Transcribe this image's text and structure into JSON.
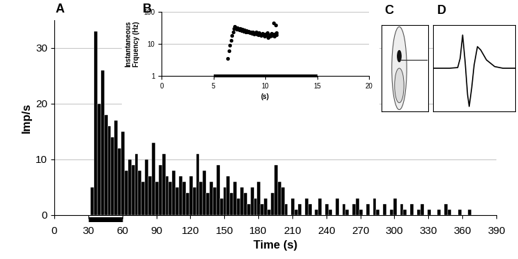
{
  "chart_data": [
    {
      "type": "histogram",
      "title": "A",
      "y_label": "Imp/s",
      "x_label": "Time (s)",
      "bins": [
        32,
        35,
        38,
        41,
        44,
        47,
        50,
        53,
        56,
        59,
        62,
        65,
        68,
        71,
        74,
        77,
        80,
        83,
        86,
        89,
        92,
        95,
        98,
        101,
        104,
        107,
        110,
        113,
        116,
        119,
        122,
        125,
        128,
        131,
        134,
        137,
        140,
        143,
        146,
        149,
        152,
        155,
        158,
        161,
        164,
        167,
        170,
        173,
        176,
        179,
        182,
        185,
        188,
        191,
        194,
        197,
        200,
        203,
        206,
        209,
        212,
        215,
        218,
        221,
        224,
        227,
        230,
        233,
        236,
        239,
        242,
        245,
        248,
        251,
        254,
        257,
        260,
        263,
        266,
        269,
        272,
        275,
        278,
        281,
        284,
        287,
        290,
        293,
        296,
        299,
        302,
        305,
        308,
        311,
        314,
        317,
        320,
        323,
        326,
        329,
        332,
        335,
        338,
        341,
        344,
        347,
        350,
        353,
        356,
        359,
        362,
        365,
        368,
        371
      ],
      "values": [
        5,
        33,
        20,
        26,
        18,
        16,
        14,
        17,
        12,
        15,
        8,
        10,
        9,
        11,
        8,
        6,
        10,
        7,
        13,
        6,
        9,
        11,
        7,
        6,
        8,
        5,
        7,
        6,
        4,
        7,
        5,
        11,
        6,
        8,
        4,
        6,
        5,
        9,
        3,
        5,
        7,
        4,
        6,
        3,
        5,
        4,
        2,
        5,
        3,
        6,
        2,
        3,
        1,
        4,
        9,
        6,
        5,
        2,
        0,
        3,
        1,
        2,
        0,
        3,
        2,
        0,
        1,
        3,
        0,
        2,
        1,
        0,
        3,
        0,
        2,
        1,
        0,
        2,
        3,
        1,
        0,
        2,
        0,
        3,
        1,
        0,
        2,
        0,
        1,
        3,
        0,
        2,
        1,
        0,
        2,
        0,
        1,
        2,
        0,
        1,
        0,
        0,
        1,
        0,
        2,
        1,
        0,
        0,
        1,
        0,
        0,
        1,
        0
      ],
      "color": "#000000",
      "xlim": [
        0,
        390
      ],
      "xticks": [
        0,
        30,
        60,
        90,
        120,
        150,
        180,
        210,
        240,
        270,
        300,
        330,
        360,
        390
      ],
      "ylim": [
        0,
        35
      ],
      "yticks": [
        0,
        10,
        20,
        30
      ],
      "grid": true,
      "stimulus": [
        30,
        60
      ]
    },
    {
      "type": "scatter",
      "title": "B",
      "y_label": "Instantaneous\nFrquency (Hz)",
      "x_label": "(s)",
      "x": [
        6.4,
        6.5,
        6.6,
        6.7,
        6.8,
        6.9,
        7.0,
        7.05,
        7.1,
        7.2,
        7.25,
        7.3,
        7.4,
        7.5,
        7.6,
        7.7,
        7.8,
        7.9,
        8.0,
        8.1,
        8.2,
        8.3,
        8.4,
        8.5,
        8.6,
        8.7,
        8.8,
        8.9,
        9.0,
        9.1,
        9.2,
        9.3,
        9.4,
        9.5,
        9.6,
        9.7,
        9.8,
        9.9,
        10.0,
        10.1,
        10.2,
        10.3,
        10.4,
        10.5,
        10.6,
        10.7,
        10.8,
        10.85,
        10.9,
        11.0,
        11.05,
        11.1
      ],
      "values": [
        3.5,
        6,
        9,
        13,
        18,
        24,
        30,
        35,
        33,
        30,
        28,
        32,
        29,
        27,
        30,
        26,
        28,
        25,
        27,
        24,
        26,
        23,
        25,
        22,
        24,
        21,
        23,
        20,
        22,
        24,
        20,
        19,
        22,
        20,
        18,
        21,
        19,
        17,
        20,
        18,
        22,
        16,
        19,
        17,
        21,
        18,
        45,
        20,
        17,
        38,
        19,
        22
      ],
      "color": "#000000",
      "marker": "o",
      "log": "y",
      "xlim": [
        0,
        20
      ],
      "xticks": [
        0,
        5,
        10,
        15,
        20
      ],
      "ylim": [
        1,
        100
      ],
      "yticks": [
        1,
        10,
        100
      ],
      "grid": true,
      "stimulus": [
        5,
        15
      ]
    },
    {
      "type": "diagram",
      "title": "C"
    },
    {
      "type": "line",
      "title": "D",
      "x": [
        0,
        0.2,
        0.3,
        0.33,
        0.36,
        0.39,
        0.42,
        0.44,
        0.47,
        0.5,
        0.54,
        0.58,
        0.65,
        0.75,
        0.85,
        1.0
      ],
      "values": [
        0,
        0,
        0.02,
        0.3,
        1.0,
        0.2,
        -0.8,
        -1.15,
        -0.6,
        0.1,
        0.65,
        0.55,
        0.25,
        0.05,
        0,
        0
      ],
      "color": "#000000",
      "xlim": [
        0,
        1
      ],
      "ylim": [
        -1.3,
        1.3
      ],
      "tick_labels": false
    }
  ]
}
